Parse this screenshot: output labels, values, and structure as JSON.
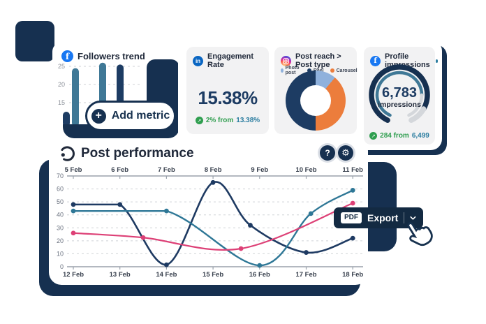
{
  "colors": {
    "navy_decor": "#163050",
    "navy_text": "#1d3c63",
    "dark_title": "#20293a",
    "line_navy": "#1e3a62",
    "line_teal": "#2e7796",
    "line_pink": "#dd4076",
    "bar_navy": "#1d3c63",
    "bar_steel": "#3f7896",
    "donut_blue": "#8fb1dc",
    "donut_navy": "#1d3c63",
    "donut_orange": "#ec7d3c",
    "green": "#2f9e4f",
    "teal_value": "#2b7da0",
    "export_bg": "#132a42",
    "card_gray": "#f2f2f3"
  },
  "followers_card": {
    "title": "Followers trend",
    "icon": "facebook-icon",
    "y_ticks": [
      25,
      20,
      15
    ],
    "bars": [
      {
        "value": 12.5,
        "color": "bar_navy"
      },
      {
        "value": 24.5,
        "color": "bar_steel"
      },
      {
        "value": 14,
        "color": "bar_navy"
      },
      {
        "value": 26,
        "color": "bar_steel"
      },
      {
        "value": 25.5,
        "color": "bar_navy"
      }
    ]
  },
  "add_metric": {
    "label": "Add metric",
    "plus": "+"
  },
  "engagement_card": {
    "title": "Engagement Rate",
    "icon": "linkedin-icon",
    "value": "15.38%",
    "delta": "2% from",
    "baseline": "13.38%",
    "delta_icon": "↗"
  },
  "post_reach_card": {
    "title": "Post reach > Post type",
    "icon": "instagram-icon",
    "legend": [
      {
        "label": "Photo post",
        "color": "donut_blue"
      },
      {
        "label": "Reel",
        "color": "donut_navy"
      },
      {
        "label": "Carousel",
        "color": "donut_orange"
      }
    ],
    "donut": {
      "start_angle": -55,
      "slices": [
        {
          "label": "Photo post",
          "pct": 26.4,
          "color": "donut_blue"
        },
        {
          "label": "Carousel",
          "pct": 38.9,
          "color": "donut_orange"
        },
        {
          "label": "Reel",
          "pct": 34.7,
          "color": "donut_navy"
        }
      ]
    }
  },
  "profile_card": {
    "title": "Profile impressions",
    "icon": "facebook-icon",
    "value": "6,783",
    "unit": "impressions",
    "delta": "284 from",
    "baseline": "6,499",
    "delta_icon": "↗",
    "gauge_percent": 85
  },
  "post_performance": {
    "title": "Post performance",
    "help_label": "?",
    "gear": "⚙",
    "dates_top": [
      "5 Feb",
      "6 Feb",
      "7 Feb",
      "8 Feb",
      "9 Feb",
      "10 Feb",
      "11 Feb"
    ],
    "dates_bottom": [
      "12 Feb",
      "13 Feb",
      "14 Feb",
      "15 Feb",
      "16 Feb",
      "17 Feb",
      "18 Feb"
    ],
    "y_ticks": [
      70,
      60,
      50,
      40,
      30,
      20,
      10,
      0
    ],
    "series": [
      {
        "name": "navy",
        "color": "line_navy",
        "width": 2.6,
        "points": [
          [
            0,
            48
          ],
          [
            1,
            48
          ],
          [
            2,
            1.5
          ],
          [
            3,
            65
          ],
          [
            3.8,
            32
          ],
          [
            5,
            11
          ],
          [
            6,
            22
          ]
        ]
      },
      {
        "name": "teal",
        "color": "line_teal",
        "width": 2.4,
        "points": [
          [
            0,
            43
          ],
          [
            2,
            43
          ],
          [
            4,
            1
          ],
          [
            5.1,
            41
          ],
          [
            6,
            59
          ]
        ]
      },
      {
        "name": "pink",
        "color": "line_pink",
        "width": 2.2,
        "points": [
          [
            0,
            26
          ],
          [
            1.5,
            22.5
          ],
          [
            3.6,
            14
          ],
          [
            6,
            49
          ]
        ]
      }
    ]
  },
  "export": {
    "format": "PDF",
    "label": "Export"
  }
}
